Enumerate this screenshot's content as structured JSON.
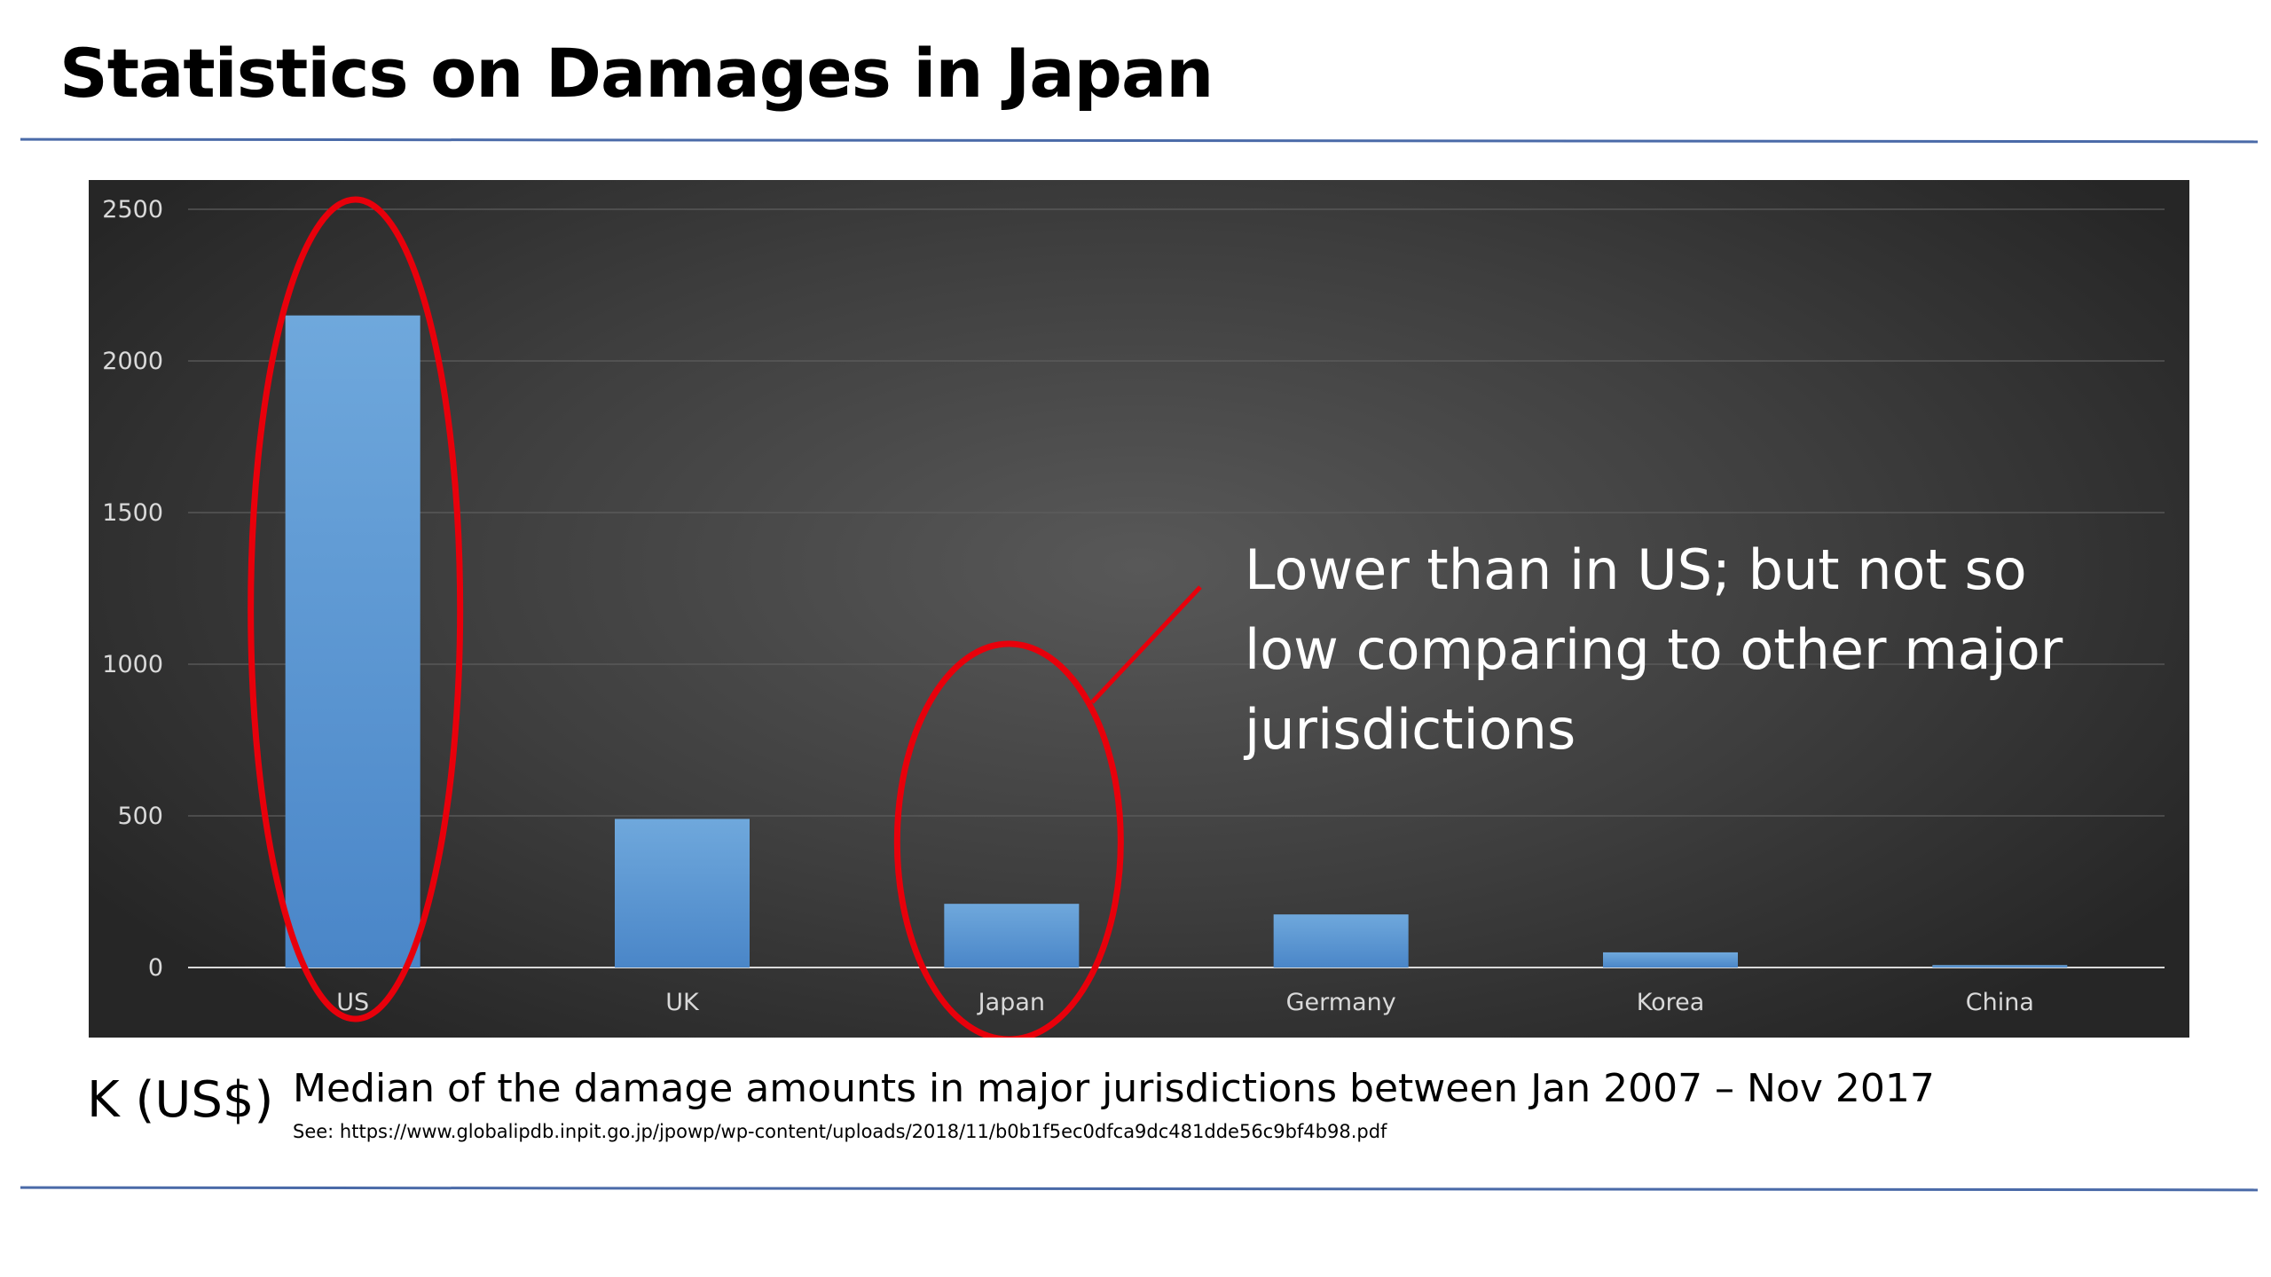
{
  "slide": {
    "title": "Statistics on Damages in Japan",
    "annotation": "Lower than in US; but not so low comparing to other major jurisdictions",
    "unit_label": "K (US$)",
    "caption": "Median of the damage amounts in major jurisdictions between Jan 2007 – Nov 2017",
    "source": "See: https://www.globalipdb.inpit.go.jp/jpowp/wp-content/uploads/2018/11/b0b1f5ec0dfca9dc481dde56c9bf4b98.pdf"
  },
  "colors": {
    "bar": "#5b9bd5",
    "highlight": "#e8000b",
    "rule": "#4a6aa8"
  },
  "chart_data": {
    "type": "bar",
    "title": "",
    "xlabel": "",
    "ylabel": "",
    "categories": [
      "US",
      "UK",
      "Japan",
      "Germany",
      "Korea",
      "China"
    ],
    "values": [
      2150,
      490,
      210,
      175,
      50,
      8
    ],
    "ylim": [
      0,
      2500
    ],
    "yticks": [
      0,
      500,
      1000,
      1500,
      2000,
      2500
    ],
    "grid": true,
    "legend": "none",
    "highlighted": [
      "US",
      "Japan"
    ]
  }
}
